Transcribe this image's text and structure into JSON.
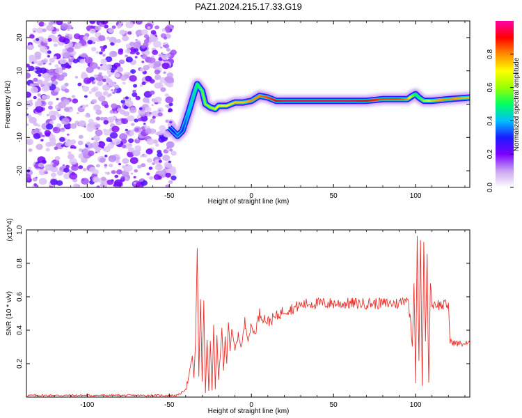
{
  "title": "PAZ1.2024.215.17.33.G19",
  "chart_data": [
    {
      "type": "heatmap",
      "xlabel": "Height of straight line (km)",
      "ylabel": "Frequency (Hz)",
      "xlim": [
        -137,
        133
      ],
      "ylim": [
        -25,
        25
      ],
      "xticks": [
        -100,
        -50,
        0,
        50,
        100
      ],
      "yticks": [
        -20,
        -10,
        0,
        10,
        20
      ],
      "colorbar": {
        "label": "Normalized spectral amplitude",
        "range": [
          0,
          1
        ],
        "ticks": [
          0.0,
          0.2,
          0.4,
          0.6,
          0.8
        ],
        "colors": [
          "#ffffff",
          "#c9a3f2",
          "#7a00ff",
          "#1b1bff",
          "#00c0ff",
          "#00ff60",
          "#9aff00",
          "#ffff00",
          "#ff8c00",
          "#ff0000",
          "#ff00aa"
        ]
      },
      "ridge": {
        "x": [
          -50,
          -47,
          -45,
          -42,
          -40,
          -38,
          -35,
          -33,
          -30,
          -28,
          -25,
          -22,
          -20,
          -15,
          -10,
          -5,
          0,
          5,
          10,
          15,
          20,
          30,
          40,
          50,
          60,
          70,
          80,
          90,
          95,
          98,
          100,
          102,
          105,
          110,
          120,
          133
        ],
        "y": [
          -7,
          -8.5,
          -9.5,
          -8,
          -5,
          -2,
          3,
          6,
          4,
          0,
          -1,
          -1.5,
          -0.5,
          -0.5,
          0.5,
          0.5,
          1,
          2.5,
          2,
          1,
          1,
          1,
          1,
          1,
          1,
          1,
          1.5,
          1.5,
          1.5,
          2.5,
          3,
          2,
          1,
          1,
          1.5,
          2
        ],
        "amplitude": [
          0.25,
          0.3,
          0.35,
          0.3,
          0.35,
          0.4,
          0.45,
          0.5,
          0.55,
          0.6,
          0.6,
          0.65,
          0.7,
          0.7,
          0.75,
          0.75,
          0.8,
          0.8,
          0.85,
          0.9,
          0.95,
          0.95,
          0.95,
          0.95,
          0.95,
          0.9,
          0.85,
          0.85,
          0.8,
          0.6,
          0.5,
          0.5,
          0.6,
          0.75,
          0.8,
          0.75
        ]
      }
    },
    {
      "type": "line",
      "xlabel": "Height of straight line (km)",
      "ylabel": "SNR (10 * v/v)",
      "yexponent": "(x10^4)",
      "xlim": [
        -137,
        133
      ],
      "ylim": [
        0,
        1
      ],
      "xticks": [
        -100,
        -50,
        0,
        50,
        100
      ],
      "yticks": [
        0.2,
        0.4,
        0.6,
        0.8,
        1.0
      ],
      "color": "#e8302b",
      "series": [
        {
          "x": [
            -137,
            -100,
            -60,
            -45,
            -42,
            -40,
            -38,
            -36,
            -35,
            -34,
            -33,
            -32,
            -31,
            -30,
            -29,
            -28,
            -27,
            -26,
            -25,
            -24,
            -23,
            -22,
            -21,
            -20,
            -19,
            -18,
            -17,
            -16,
            -15,
            -14,
            -13,
            -12,
            -10,
            -8,
            -6,
            -4,
            -2,
            0,
            2,
            5,
            10,
            15,
            20,
            25,
            30,
            35,
            40,
            50,
            60,
            70,
            80,
            90,
            95,
            97,
            98,
            99,
            100,
            101,
            102,
            103,
            104,
            105,
            106,
            107,
            108,
            109,
            110,
            112,
            115,
            118,
            120,
            121,
            122,
            125,
            130,
            133
          ],
          "y": [
            0.01,
            0.01,
            0.01,
            0.01,
            0.03,
            0.05,
            0.12,
            0.25,
            0.1,
            0.35,
            0.88,
            0.12,
            0.6,
            0.1,
            0.55,
            0.02,
            0.35,
            0.05,
            0.32,
            0.04,
            0.42,
            0.05,
            0.35,
            0.1,
            0.25,
            0.42,
            0.15,
            0.35,
            0.22,
            0.47,
            0.28,
            0.4,
            0.28,
            0.37,
            0.3,
            0.45,
            0.35,
            0.42,
            0.38,
            0.5,
            0.45,
            0.48,
            0.52,
            0.53,
            0.55,
            0.56,
            0.56,
            0.56,
            0.56,
            0.56,
            0.56,
            0.56,
            0.6,
            0.45,
            0.3,
            0.7,
            0.1,
            0.97,
            0.2,
            0.95,
            0.05,
            0.92,
            0.35,
            0.85,
            0.07,
            0.7,
            0.55,
            0.56,
            0.55,
            0.55,
            0.55,
            0.33,
            0.33,
            0.32,
            0.32,
            0.32
          ]
        }
      ]
    }
  ]
}
